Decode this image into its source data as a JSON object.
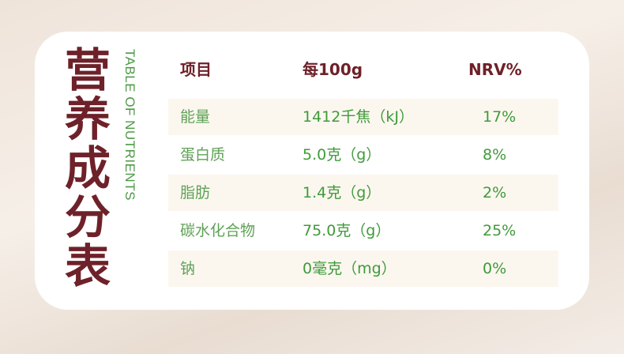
{
  "title": {
    "chars": [
      "营",
      "养",
      "成",
      "分",
      "表"
    ],
    "english": "TABLE OF NUTRIENTS"
  },
  "headers": [
    "项目",
    "每100g",
    "NRV%"
  ],
  "rows": [
    [
      "能量",
      "1412千焦（kJ）",
      "17%"
    ],
    [
      "蛋白质",
      "5.0克（g）",
      "8%"
    ],
    [
      "脂肪",
      "1.4克（g）",
      "2%"
    ],
    [
      "碳水化合物",
      "75.0克（g）",
      "25%"
    ],
    [
      "钠",
      "0毫克（mg）",
      "0%"
    ]
  ],
  "colors": {
    "title": "#6e2129",
    "text": "#3f9a3a",
    "row_shade": "#fbf7ef"
  }
}
